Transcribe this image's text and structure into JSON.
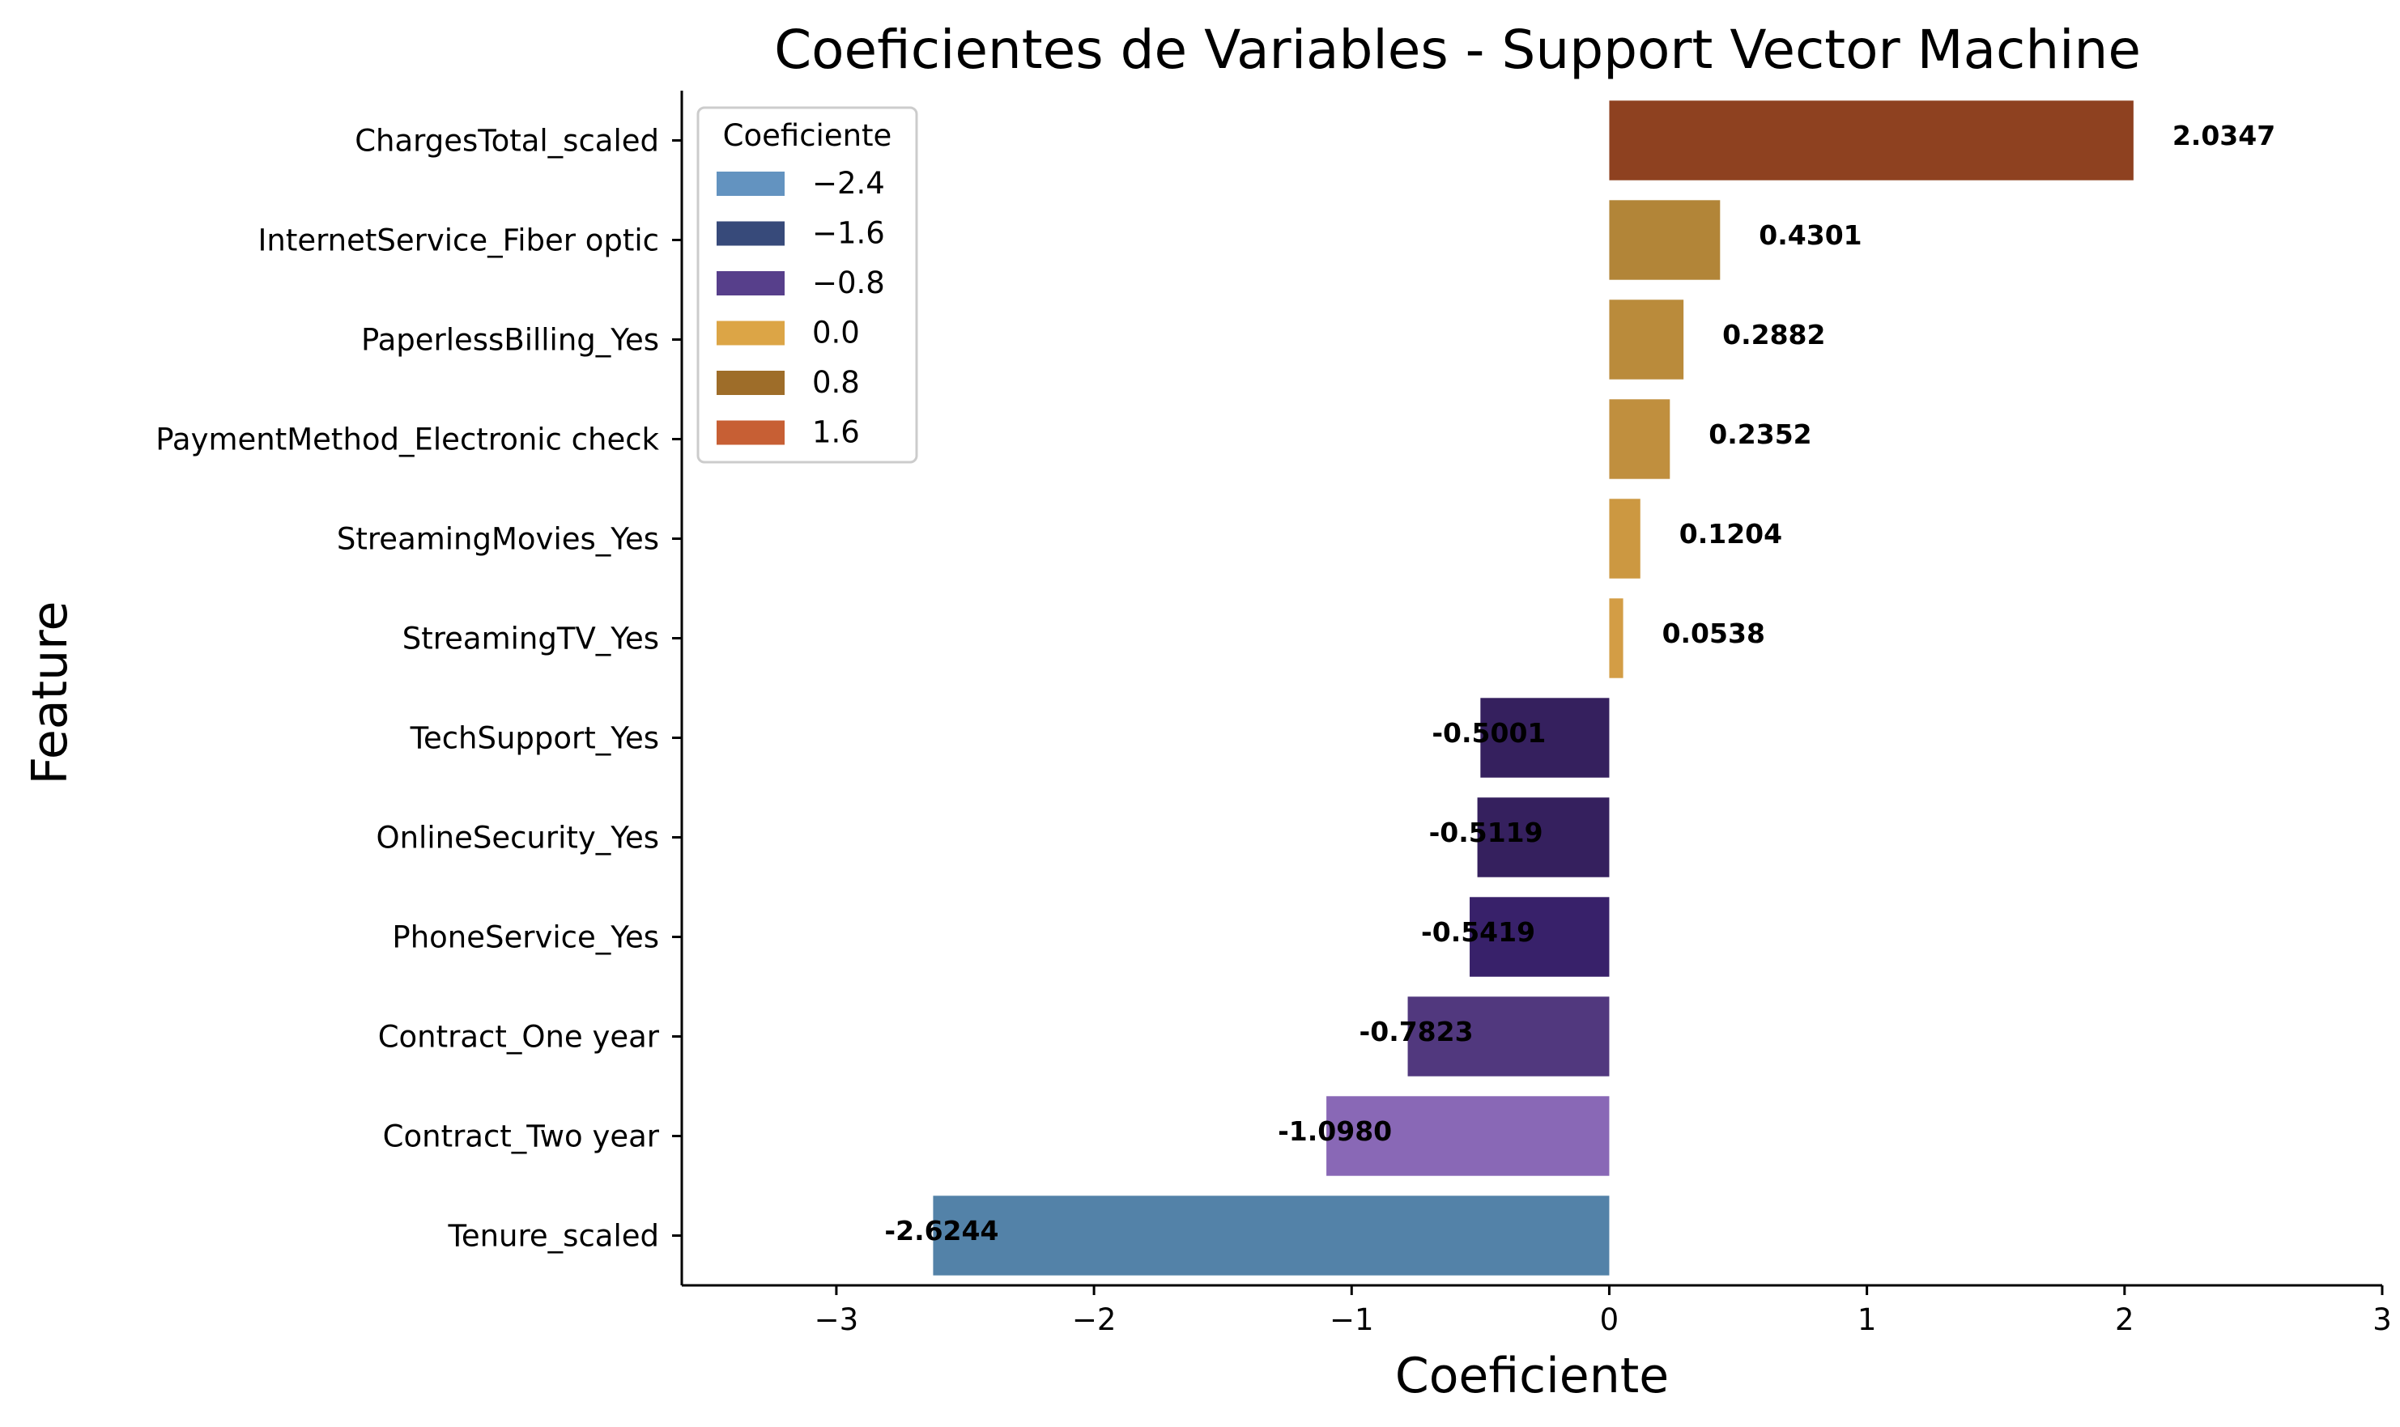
{
  "chart_data": {
    "type": "bar",
    "orientation": "horizontal",
    "title": "Coeficientes de Variables - Support Vector Machine",
    "xlabel": "Coeficiente",
    "ylabel": "Feature",
    "xlim": [
      -3.6,
      3.0
    ],
    "xticks": [
      -3,
      -2,
      -1,
      0,
      1,
      2,
      3
    ],
    "xtick_labels": [
      "−3",
      "−2",
      "−1",
      "0",
      "1",
      "2",
      "3"
    ],
    "grid": false,
    "categories": [
      "ChargesTotal_scaled",
      "InternetService_Fiber optic",
      "PaperlessBilling_Yes",
      "PaymentMethod_Electronic check",
      "StreamingMovies_Yes",
      "StreamingTV_Yes",
      "TechSupport_Yes",
      "OnlineSecurity_Yes",
      "PhoneService_Yes",
      "Contract_One year",
      "Contract_Two year",
      "Tenure_scaled"
    ],
    "values": [
      2.0347,
      0.4301,
      0.2882,
      0.2352,
      0.1204,
      0.0538,
      -0.5001,
      -0.5119,
      -0.5419,
      -0.7823,
      -1.098,
      -2.6244
    ],
    "value_labels": [
      "2.0347",
      "0.4301",
      "0.2882",
      "0.2352",
      "0.1204",
      "0.0538",
      "-0.5001",
      "-0.5119",
      "-0.5419",
      "-0.7823",
      "-1.0980",
      "-2.6244"
    ],
    "bar_colors": [
      "#8e4120",
      "#b28538",
      "#ba8b3b",
      "#c08f3e",
      "#cc9841",
      "#d39d45",
      "#35205e",
      "#35205e",
      "#38216a",
      "#51387e",
      "#8968b6",
      "#5382a8"
    ],
    "legend": {
      "title": "Coeficiente",
      "placement": "upper-left",
      "entries": [
        {
          "label": "−2.4",
          "color": "#6393c0"
        },
        {
          "label": "−1.6",
          "color": "#374a7a"
        },
        {
          "label": "−0.8",
          "color": "#573f8b"
        },
        {
          "label": "0.0",
          "color": "#dca546"
        },
        {
          "label": "0.8",
          "color": "#9e6d29"
        },
        {
          "label": "1.6",
          "color": "#c75f34"
        }
      ]
    }
  }
}
